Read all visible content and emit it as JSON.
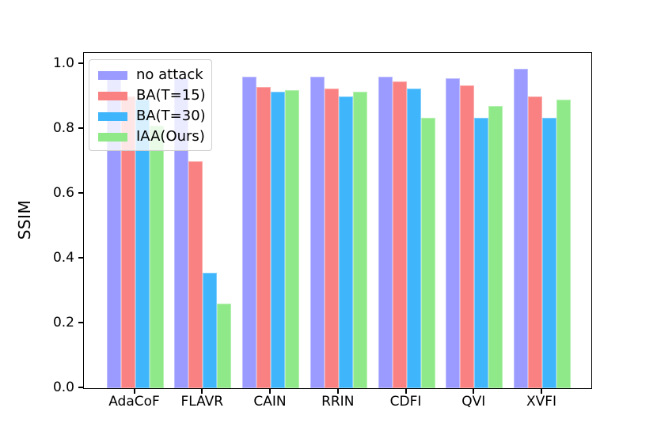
{
  "chart_data": {
    "type": "bar",
    "title": "",
    "xlabel": "",
    "ylabel": "SSIM",
    "categories": [
      "AdaCoF",
      "FLAVR",
      "CAIN",
      "RRIN",
      "CDFI",
      "QVI",
      "XVFI"
    ],
    "series": [
      {
        "name": "no attack",
        "color": "#9a9aff",
        "values": [
          0.96,
          0.955,
          0.96,
          0.96,
          0.96,
          0.955,
          0.985
        ]
      },
      {
        "name": "BA(T=15)",
        "color": "#f98181",
        "values": [
          0.9,
          0.7,
          0.93,
          0.925,
          0.945,
          0.935,
          0.9
        ]
      },
      {
        "name": "BA(T=30)",
        "color": "#3fb5fb",
        "values": [
          0.89,
          0.355,
          0.915,
          0.9,
          0.925,
          0.835,
          0.835
        ]
      },
      {
        "name": "IAA(Ours)",
        "color": "#90e989",
        "values": [
          0.81,
          0.26,
          0.92,
          0.915,
          0.835,
          0.87,
          0.89
        ]
      }
    ],
    "ylim": [
      0,
      1.034
    ],
    "yticks": [
      0.0,
      0.2,
      0.4,
      0.6,
      0.8,
      1.0
    ],
    "ytick_labels": [
      "0.0",
      "0.2",
      "0.4",
      "0.6",
      "0.8",
      "1.0"
    ],
    "legend_position": "upper left",
    "grid": false,
    "frame_color": "#000000",
    "background_color": "#ffffff"
  }
}
